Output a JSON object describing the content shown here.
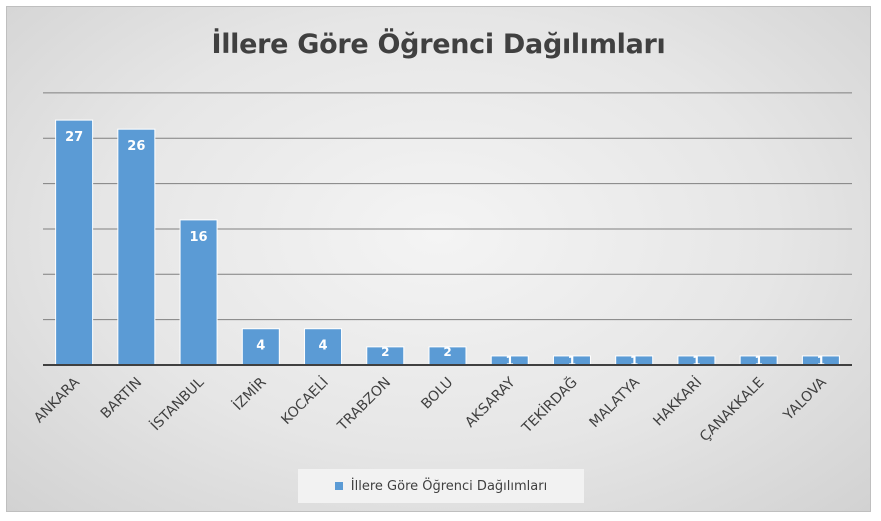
{
  "chart_data": {
    "type": "bar",
    "title": "İllere Göre Öğrenci Dağılımları",
    "xlabel": "",
    "ylabel": "",
    "categories": [
      "ANKARA",
      "BARTIN",
      "İSTANBUL",
      "İZMİR",
      "KOCAELİ",
      "TRABZON",
      "BOLU",
      "AKSARAY",
      "TEKİRDAĞ",
      "MALATYA",
      "HAKKARİ",
      "ÇANAKKALE",
      "YALOVA"
    ],
    "series": [
      {
        "name": "İllere Göre Öğrenci Dağılımları",
        "values": [
          27,
          26,
          16,
          4,
          4,
          2,
          2,
          1,
          1,
          1,
          1,
          1,
          1
        ]
      }
    ],
    "ylim": [
      0,
      30
    ],
    "y_gridlines": [
      5,
      10,
      15,
      20,
      25,
      30
    ],
    "grid": true,
    "legend_position": "bottom",
    "data_labels": true,
    "colors": {
      "bar": "#5b9bd5",
      "bar_edge": "#ffffff",
      "gridline": "#808080",
      "axis": "#404040",
      "label_dark": "#404040",
      "label_light": "#ffffff"
    }
  }
}
